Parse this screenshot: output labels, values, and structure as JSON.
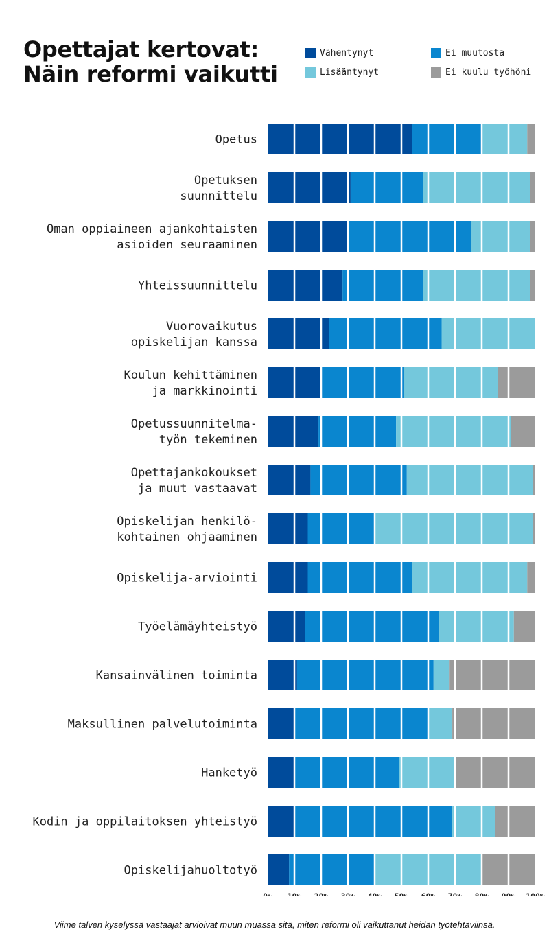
{
  "title": {
    "line1": "Opettajat kertovat:",
    "line2": "Näin reformi vaikutti"
  },
  "legend": [
    {
      "label": "Vähentynyt",
      "color": "#004b9b"
    },
    {
      "label": "Ei muutosta",
      "color": "#0a86cf"
    },
    {
      "label": "Lisääntynyt",
      "color": "#74c8dc"
    },
    {
      "label": "Ei kuulu työhöni",
      "color": "#9b9b9b"
    }
  ],
  "chart_data": {
    "type": "bar",
    "orientation": "horizontal",
    "stacked": true,
    "xlim": [
      0,
      100
    ],
    "xticks": [
      "0%",
      "10%",
      "20%",
      "30%",
      "40%",
      "50%",
      "60%",
      "70%",
      "80%",
      "90%",
      "100%"
    ],
    "grid": false,
    "legend_position": "top-right",
    "categories": [
      [
        "Opetus"
      ],
      [
        "Opetuksen",
        "suunnittelu"
      ],
      [
        "Oman oppiaineen ajankohtaisten",
        "asioiden seuraaminen"
      ],
      [
        "Yhteissuunnittelu"
      ],
      [
        "Vuorovaikutus",
        "opiskelijan kanssa"
      ],
      [
        "Koulun kehittäminen",
        "ja markkinointi"
      ],
      [
        "Opetussuunnitelma-",
        "työn tekeminen"
      ],
      [
        "Opettajankokoukset",
        "ja muut vastaavat"
      ],
      [
        "Opiskelijan henkilö-",
        "kohtainen ohjaaminen"
      ],
      [
        "Opiskelija-arviointi"
      ],
      [
        "Työelämäyhteistyö"
      ],
      [
        "Kansainvälinen toiminta"
      ],
      [
        "Maksullinen palvelutoiminta"
      ],
      [
        "Hanketyö"
      ],
      [
        "Kodin ja oppilaitoksen yhteistyö"
      ],
      [
        "Opiskelijahuoltotyö"
      ]
    ],
    "series": [
      {
        "name": "Vähentynyt",
        "color": "#004b9b",
        "values": [
          54,
          31,
          30,
          28,
          23,
          20,
          19,
          16,
          15,
          15,
          14,
          11,
          10,
          10,
          10,
          8
        ]
      },
      {
        "name": "Ei muutosta",
        "color": "#0a86cf",
        "values": [
          26,
          27,
          46,
          30,
          42,
          31,
          29,
          36,
          25,
          39,
          50,
          51,
          50,
          39,
          59,
          32
        ]
      },
      {
        "name": "Lisääntynyt",
        "color": "#74c8dc",
        "values": [
          17,
          40,
          22,
          40,
          35,
          35,
          43,
          47,
          59,
          43,
          28,
          6,
          9,
          21,
          16,
          40
        ]
      },
      {
        "name": "Ei kuulu työhöni",
        "color": "#9b9b9b",
        "values": [
          3,
          2,
          2,
          2,
          0,
          14,
          9,
          1,
          1,
          3,
          8,
          32,
          31,
          30,
          15,
          20
        ]
      }
    ]
  },
  "footnote": "Viime talven kyselyssä vastaajat arvioivat muun muassa sitä, miten reformi oli vaikuttanut heidän työtehtäviinsä."
}
